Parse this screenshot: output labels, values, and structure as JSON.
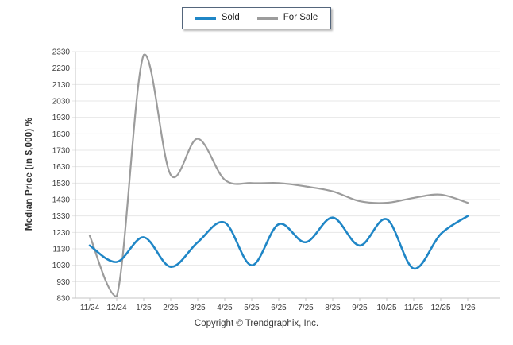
{
  "footer": {
    "text": "Copyright © Trendgraphix, Inc."
  },
  "colors": {
    "sold": "#1f86c6",
    "for_sale": "#9c9c9c",
    "grid": "#e7e7e7",
    "axis": "#c6c6c6",
    "tick_text": "#3d3d3d",
    "legend_border": "#54667c",
    "background": "#ffffff"
  },
  "chart_data": {
    "type": "line",
    "title": "",
    "xlabel": "",
    "ylabel": "Median Price (in $,000) %",
    "categories": [
      "11/24",
      "12/24",
      "1/25",
      "2/25",
      "3/25",
      "4/25",
      "5/25",
      "6/25",
      "7/25",
      "8/25",
      "9/25",
      "10/25",
      "11/25",
      "12/25",
      "1/26"
    ],
    "series": [
      {
        "name": "Sold",
        "color": "#1f86c6",
        "values": [
          1150,
          1050,
          1200,
          1020,
          1170,
          1290,
          1030,
          1280,
          1170,
          1320,
          1150,
          1310,
          1010,
          1220,
          1330
        ]
      },
      {
        "name": "For Sale",
        "color": "#9c9c9c",
        "values": [
          1210,
          840,
          2310,
          1580,
          1800,
          1550,
          1530,
          1530,
          1510,
          1480,
          1420,
          1410,
          1440,
          1460,
          1410
        ]
      }
    ],
    "ylim": [
      830,
      2330
    ],
    "ytick_step": 100,
    "grid": "horizontal",
    "legend_position": "top-center",
    "smooth": true
  }
}
